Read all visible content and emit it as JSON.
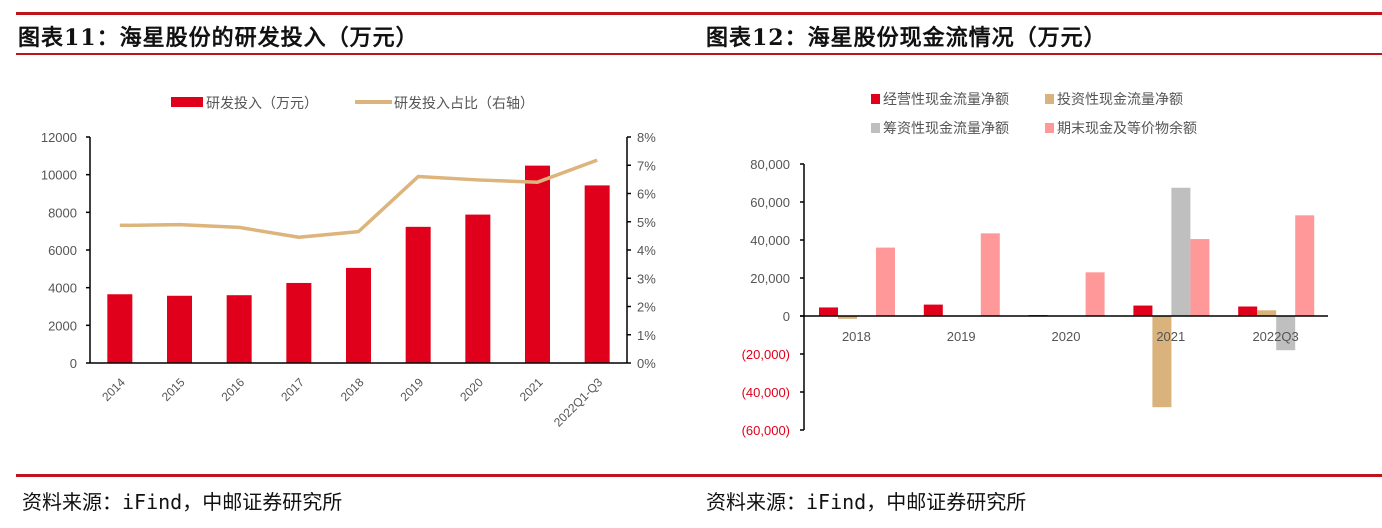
{
  "header": {
    "left_title": "图表11：海星股份的研发投入（万元）",
    "right_title": "图表12：海星股份现金流情况（万元）"
  },
  "footer": {
    "left_source": "资料来源：iFind，中邮证券研究所",
    "right_source": "资料来源：iFind，中邮证券研究所"
  },
  "chart_data": [
    {
      "type": "bar+line",
      "categories": [
        "2014",
        "2015",
        "2016",
        "2017",
        "2018",
        "2019",
        "2020",
        "2021",
        "2022Q1-Q3"
      ],
      "series": [
        {
          "name": "研发投入（万元）",
          "type": "bar",
          "axis": "left",
          "color": "#e0001b",
          "values": [
            3650,
            3570,
            3600,
            4250,
            5050,
            7230,
            7880,
            10480,
            9430
          ]
        },
        {
          "name": "研发投入占比（右轴）",
          "type": "line",
          "axis": "right",
          "color": "#dcb47c",
          "values": [
            4.87,
            4.9,
            4.8,
            4.45,
            4.65,
            6.6,
            6.48,
            6.4,
            7.18
          ]
        }
      ],
      "y_left": {
        "min": 0,
        "max": 12000,
        "ticks": [
          "0",
          "2000",
          "4000",
          "6000",
          "8000",
          "10000",
          "12000"
        ]
      },
      "y_right": {
        "min": 0,
        "max": 8,
        "ticks": [
          "0%",
          "1%",
          "2%",
          "3%",
          "4%",
          "5%",
          "6%",
          "7%",
          "8%"
        ]
      },
      "legend": "top",
      "grid": false
    },
    {
      "type": "bar",
      "categories": [
        "2018",
        "2019",
        "2020",
        "2021",
        "2022Q3"
      ],
      "series": [
        {
          "name": "经营性现金流量净额",
          "color": "#e0001b",
          "values": [
            4500,
            6000,
            500,
            5500,
            5000
          ]
        },
        {
          "name": "投资性现金流量净额",
          "color": "#d9b27c",
          "values": [
            -1500,
            0,
            300,
            -48000,
            3000
          ]
        },
        {
          "name": "筹资性现金流量净额",
          "color": "#bfbfbf",
          "values": [
            0,
            0,
            0,
            67500,
            -18000
          ]
        },
        {
          "name": "期末现金及等价物余额",
          "color": "#ff9999",
          "values": [
            36000,
            43500,
            23000,
            40500,
            53000
          ]
        }
      ],
      "y": {
        "min": -60000,
        "max": 80000,
        "ticks": [
          "(60,000)",
          "(40,000)",
          "(20,000)",
          "0",
          "20,000",
          "40,000",
          "60,000",
          "80,000"
        ],
        "negative_tick_color": "#e0001b"
      },
      "legend": "top",
      "grid": false
    }
  ]
}
